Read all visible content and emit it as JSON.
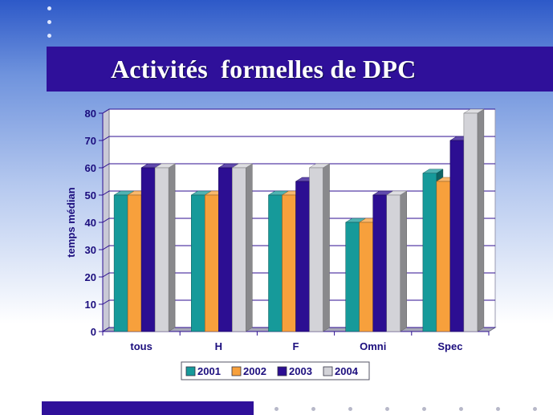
{
  "slide": {
    "title": "Activités  formelles de DPC"
  },
  "colors": {
    "title_band": "#2f109a",
    "text_dark": "#1c0e7e",
    "plot_wall": "#ffffff"
  },
  "chart_data": {
    "type": "bar",
    "title": "Activités  formelles de DPC",
    "xlabel": "",
    "ylabel": "temps médian",
    "ylim": [
      0,
      80
    ],
    "yticks": [
      0,
      10,
      20,
      30,
      40,
      50,
      60,
      70,
      80
    ],
    "grid": true,
    "legend_position": "bottom",
    "categories": [
      "tous",
      "H",
      "F",
      "Omni",
      "Spec"
    ],
    "series": [
      {
        "name": "2001",
        "color": "#169a9a",
        "values": [
          50,
          50,
          50,
          40,
          58
        ]
      },
      {
        "name": "2002",
        "color": "#f7a03c",
        "values": [
          50,
          50,
          50,
          40,
          55
        ]
      },
      {
        "name": "2003",
        "color": "#2c0e92",
        "values": [
          60,
          60,
          55,
          50,
          70
        ]
      },
      {
        "name": "2004",
        "color": "#d3d3d8",
        "values": [
          60,
          60,
          60,
          50,
          80
        ]
      }
    ]
  }
}
